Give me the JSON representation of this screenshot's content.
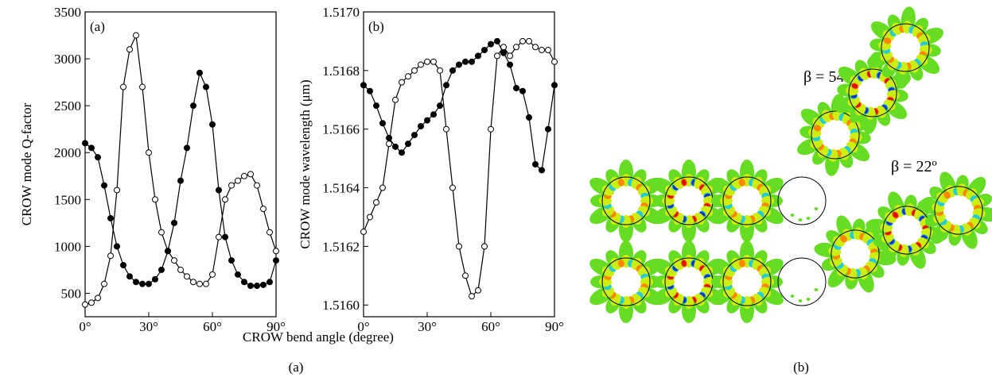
{
  "chart_data": [
    {
      "type": "line",
      "panel": "(a)",
      "ylabel": "CROW mode Q-factor",
      "xlabel": "CROW bend angle (degree)",
      "x": [
        0,
        3,
        6,
        9,
        12,
        15,
        18,
        21,
        24,
        27,
        30,
        33,
        36,
        39,
        42,
        45,
        48,
        51,
        54,
        57,
        60,
        63,
        66,
        69,
        72,
        75,
        78,
        81,
        84,
        87,
        90
      ],
      "series": [
        {
          "color": "#000000",
          "marker": "open",
          "values": [
            380,
            400,
            450,
            600,
            900,
            1600,
            2700,
            3100,
            3250,
            2700,
            2000,
            1500,
            1150,
            950,
            850,
            750,
            680,
            620,
            600,
            600,
            700,
            1100,
            1500,
            1650,
            1700,
            1750,
            1770,
            1650,
            1400,
            1150,
            950
          ]
        },
        {
          "color": "#000000",
          "marker": "filled",
          "values": [
            2100,
            2050,
            1950,
            1650,
            1300,
            1000,
            800,
            680,
            620,
            600,
            600,
            650,
            750,
            950,
            1250,
            1700,
            2050,
            2500,
            2850,
            2700,
            2300,
            1600,
            1100,
            850,
            700,
            620,
            580,
            580,
            590,
            620,
            850
          ]
        }
      ],
      "xlim": [
        0,
        90
      ],
      "xticks": [
        {
          "value": 0,
          "label": "0°"
        },
        {
          "value": 30,
          "label": "30°"
        },
        {
          "value": 60,
          "label": "60°"
        },
        {
          "value": 90,
          "label": "90°"
        }
      ],
      "ylim": [
        250,
        3500
      ],
      "yticks": [
        500,
        1000,
        1500,
        2000,
        2500,
        3000,
        3500
      ]
    },
    {
      "type": "line",
      "panel": "(b)",
      "ylabel": "CROW mode wavelength (μm)",
      "x": [
        0,
        3,
        6,
        9,
        12,
        15,
        18,
        21,
        24,
        27,
        30,
        33,
        36,
        39,
        42,
        45,
        48,
        51,
        54,
        57,
        60,
        63,
        66,
        69,
        72,
        75,
        78,
        81,
        84,
        87,
        90
      ],
      "series": [
        {
          "color": "#000000",
          "marker": "open",
          "values": [
            1.51625,
            1.5163,
            1.51635,
            1.5164,
            1.51655,
            1.5167,
            1.51676,
            1.51678,
            1.5168,
            1.51682,
            1.51683,
            1.51683,
            1.5168,
            1.5166,
            1.5164,
            1.5162,
            1.5161,
            1.51603,
            1.51605,
            1.5162,
            1.5166,
            1.51685,
            1.51688,
            1.51685,
            1.51688,
            1.5169,
            1.5169,
            1.51688,
            1.51687,
            1.51687,
            1.51683
          ]
        },
        {
          "color": "#000000",
          "marker": "filled",
          "values": [
            1.51675,
            1.51673,
            1.51668,
            1.51662,
            1.51657,
            1.51654,
            1.51652,
            1.51655,
            1.51658,
            1.51661,
            1.51663,
            1.51665,
            1.51668,
            1.51675,
            1.5168,
            1.51682,
            1.51683,
            1.51683,
            1.51685,
            1.51687,
            1.51689,
            1.5169,
            1.51686,
            1.51682,
            1.51674,
            1.51673,
            1.51664,
            1.51648,
            1.51646,
            1.5166,
            1.51675
          ]
        }
      ],
      "xlim": [
        0,
        90
      ],
      "xticks": [
        {
          "value": 0,
          "label": "0°"
        },
        {
          "value": 30,
          "label": "30°"
        },
        {
          "value": 60,
          "label": "60°"
        },
        {
          "value": 90,
          "label": "90°"
        }
      ],
      "ylim": [
        1.51596,
        1.517
      ],
      "yticks": [
        {
          "value": 1.516,
          "label": "1.5160"
        },
        {
          "value": 1.5162,
          "label": "1.5162"
        },
        {
          "value": 1.5164,
          "label": "1.5164"
        },
        {
          "value": 1.5166,
          "label": "1.5166"
        },
        {
          "value": 1.5168,
          "label": "1.5168"
        },
        {
          "value": 1.517,
          "label": "1.5170"
        }
      ]
    }
  ],
  "diagram": {
    "labels": [
      "β = 54º",
      "β = 22º"
    ]
  },
  "captions": [
    "(a)",
    "(b)"
  ]
}
